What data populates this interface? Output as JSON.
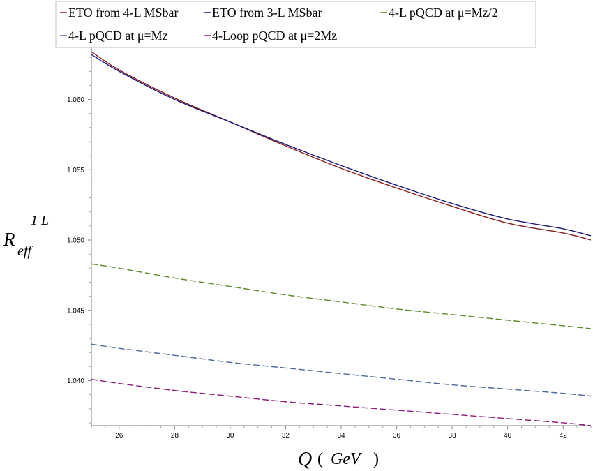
{
  "chart_data": {
    "type": "line",
    "title": "",
    "xlabel": {
      "main": "Q",
      "unit": "GeV"
    },
    "ylabel": {
      "main": "R",
      "subscript": "eff",
      "superscript": "1 L"
    },
    "xlim": [
      25,
      43
    ],
    "ylim": [
      1.0368,
      1.0637
    ],
    "xticks": [
      26,
      28,
      30,
      32,
      34,
      36,
      38,
      40,
      42
    ],
    "yticks": [
      1.04,
      1.045,
      1.05,
      1.055,
      1.06
    ],
    "ytick_labels": [
      "1.040",
      "1.045",
      "1.050",
      "1.055",
      "1.060"
    ],
    "grid": false,
    "legend_position": "top",
    "x": [
      25,
      26,
      28,
      30,
      32,
      34,
      36,
      38,
      40,
      42,
      43
    ],
    "series": [
      {
        "name": "ETO from 4-L MSbar",
        "color": "#8b1a1a",
        "dash": "solid",
        "values": [
          1.0634,
          1.0621,
          1.0601,
          1.0584,
          1.0567,
          1.0551,
          1.0537,
          1.0524,
          1.0512,
          1.0505,
          1.05
        ]
      },
      {
        "name": "ETO from 3-L MSbar",
        "color": "#1a1a7a",
        "dash": "solid",
        "values": [
          1.0632,
          1.062,
          1.06,
          1.0584,
          1.0568,
          1.0553,
          1.0539,
          1.0526,
          1.0515,
          1.0508,
          1.0503
        ]
      },
      {
        "name": "4-L pQCD at μ=Mz/2",
        "color": "#5a8a2a",
        "dash": "dashed",
        "values": [
          1.0483,
          1.048,
          1.0473,
          1.0467,
          1.0461,
          1.0456,
          1.0451,
          1.0447,
          1.0443,
          1.0439,
          1.0437
        ]
      },
      {
        "name": "4-L pQCD at μ=Mz",
        "color": "#4a6a9a",
        "dash": "dashed",
        "values": [
          1.0426,
          1.0423,
          1.0418,
          1.0413,
          1.0409,
          1.0405,
          1.0401,
          1.0397,
          1.0394,
          1.0391,
          1.0389
        ]
      },
      {
        "name": "4-Loop pQCD at μ=2Mz",
        "color": "#8b1a7a",
        "dash": "dashed",
        "values": [
          1.0401,
          1.0398,
          1.0393,
          1.0389,
          1.0385,
          1.0382,
          1.0379,
          1.0376,
          1.0373,
          1.037,
          1.0368
        ]
      }
    ]
  }
}
